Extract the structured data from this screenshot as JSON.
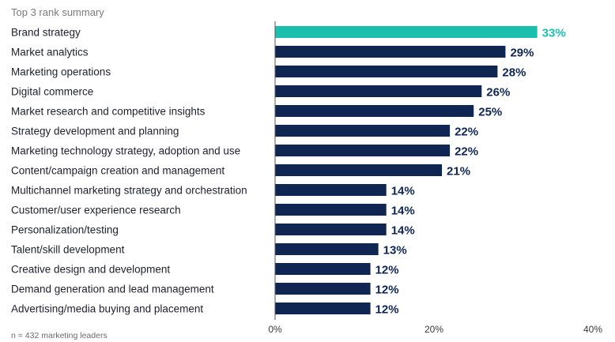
{
  "chart_data": {
    "type": "bar",
    "orientation": "horizontal",
    "subtitle": "Top 3 rank summary",
    "categories": [
      "Brand strategy",
      "Market analytics",
      "Marketing operations",
      "Digital commerce",
      "Market research and competitive insights",
      "Strategy development and planning",
      "Marketing technology strategy, adoption and use",
      "Content/campaign creation and management",
      "Multichannel marketing strategy and orchestration",
      "Customer/user experience research",
      "Personalization/testing",
      "Talent/skill development",
      "Creative design and development",
      "Demand generation and lead management",
      "Advertising/media buying and placement"
    ],
    "values": [
      33,
      29,
      28,
      26,
      25,
      22,
      22,
      21,
      14,
      14,
      14,
      13,
      12,
      12,
      12
    ],
    "value_labels": [
      "33%",
      "29%",
      "28%",
      "26%",
      "25%",
      "22%",
      "22%",
      "21%",
      "14%",
      "14%",
      "14%",
      "13%",
      "12%",
      "12%",
      "12%"
    ],
    "xlim": [
      0,
      40
    ],
    "x_ticks": [
      0,
      20,
      40
    ],
    "x_tick_labels": [
      "0%",
      "20%",
      "40%"
    ],
    "grid": false,
    "highlight_index": 0,
    "colors": {
      "highlight": "#1abfae",
      "bar": "#0f2653",
      "axis": "#555555"
    },
    "note": "n = 432 marketing leaders"
  }
}
